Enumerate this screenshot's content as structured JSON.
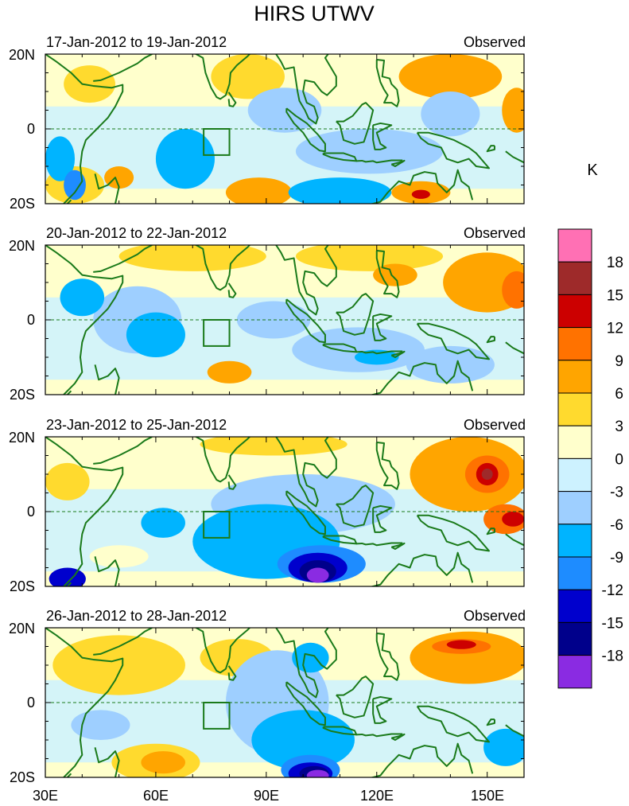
{
  "chart_data": {
    "type": "heatmap",
    "title": "HIRS UTWV",
    "units": "K",
    "x_ticks": [
      "30E",
      "60E",
      "90E",
      "120E",
      "150E"
    ],
    "y_ticks": [
      "20N",
      "0",
      "20S"
    ],
    "xlim": [
      30,
      160
    ],
    "ylim": [
      -20,
      20
    ],
    "colorbar": {
      "labels": [
        "18",
        "15",
        "12",
        "9",
        "6",
        "3",
        "0",
        "-3",
        "-6",
        "-9",
        "-12",
        "-15",
        "-18"
      ],
      "levels_desc": [
        18,
        15,
        12,
        9,
        6,
        3,
        0,
        -3,
        -6,
        -9,
        -12,
        -15,
        -18
      ],
      "colors_desc": [
        "#ff70b4",
        "#9e2a2a",
        "#cc0000",
        "#ff7200",
        "#ffa500",
        "#ffda2e",
        "#ffffcc",
        "#cdf2ff",
        "#9ecfff",
        "#00b4ff",
        "#1e8cff",
        "#0000cd",
        "#00008b",
        "#8a2be2"
      ]
    },
    "panels": [
      {
        "period": "17-Jan-2012 to 19-Jan-2012",
        "label": "Observed",
        "features": [
          {
            "lon": 42,
            "lat": 12,
            "rx": 7,
            "ry": 5,
            "value": 4.5
          },
          {
            "lon": 85,
            "lat": 14,
            "rx": 10,
            "ry": 6,
            "value": 4.5
          },
          {
            "lon": 140,
            "lat": 14,
            "rx": 14,
            "ry": 6,
            "value": 7
          },
          {
            "lon": 158,
            "lat": 5,
            "rx": 4,
            "ry": 6,
            "value": 7
          },
          {
            "lon": 38,
            "lat": -15,
            "rx": 8,
            "ry": 5,
            "value": 4.5
          },
          {
            "lon": 50,
            "lat": -13,
            "rx": 4,
            "ry": 3,
            "value": 7
          },
          {
            "lon": 88,
            "lat": -17,
            "rx": 9,
            "ry": 4,
            "value": 7
          },
          {
            "lon": 132,
            "lat": -17,
            "rx": 8,
            "ry": 3,
            "value": 7
          },
          {
            "lon": 132,
            "lat": -17.5,
            "rx": 2.5,
            "ry": 1.2,
            "value": 13.5
          },
          {
            "lon": 140,
            "lat": 4,
            "rx": 8,
            "ry": 6,
            "value": -4.5
          },
          {
            "lon": 95,
            "lat": 5,
            "rx": 10,
            "ry": 6,
            "value": -4.5
          },
          {
            "lon": 68,
            "lat": -8,
            "rx": 8,
            "ry": 8,
            "value": -7.5
          },
          {
            "lon": 118,
            "lat": -6,
            "rx": 20,
            "ry": 6,
            "value": -4.5
          },
          {
            "lon": 110,
            "lat": -17,
            "rx": 14,
            "ry": 4,
            "value": -7.5
          },
          {
            "lon": 34,
            "lat": -8,
            "rx": 4,
            "ry": 6,
            "value": -7.5
          },
          {
            "lon": 38,
            "lat": -15,
            "rx": 3,
            "ry": 4,
            "value": -10.5
          }
        ]
      },
      {
        "period": "20-Jan-2012 to 22-Jan-2012",
        "label": "Observed",
        "features": [
          {
            "lon": 70,
            "lat": 17,
            "rx": 20,
            "ry": 4,
            "value": 4.5
          },
          {
            "lon": 118,
            "lat": 17,
            "rx": 20,
            "ry": 4,
            "value": 4.5
          },
          {
            "lon": 150,
            "lat": 10,
            "rx": 12,
            "ry": 8,
            "value": 7
          },
          {
            "lon": 158,
            "lat": 8,
            "rx": 4,
            "ry": 5,
            "value": 10.5
          },
          {
            "lon": 80,
            "lat": -14,
            "rx": 6,
            "ry": 3,
            "value": 7
          },
          {
            "lon": 125,
            "lat": 12,
            "rx": 6,
            "ry": 3,
            "value": 7
          },
          {
            "lon": 55,
            "lat": 0,
            "rx": 12,
            "ry": 9,
            "value": -4.5
          },
          {
            "lon": 40,
            "lat": 6,
            "rx": 6,
            "ry": 5,
            "value": -7.5
          },
          {
            "lon": 60,
            "lat": -4,
            "rx": 8,
            "ry": 6,
            "value": -7.5
          },
          {
            "lon": 92,
            "lat": 0,
            "rx": 10,
            "ry": 5,
            "value": -4.5
          },
          {
            "lon": 115,
            "lat": -8,
            "rx": 18,
            "ry": 6,
            "value": -4.5
          },
          {
            "lon": 140,
            "lat": -12,
            "rx": 12,
            "ry": 5,
            "value": -4.5
          },
          {
            "lon": 120,
            "lat": -10,
            "rx": 6,
            "ry": 2,
            "value": -7.5
          }
        ]
      },
      {
        "period": "23-Jan-2012 to 25-Jan-2012",
        "label": "Observed",
        "features": [
          {
            "lon": 36,
            "lat": 8,
            "rx": 6,
            "ry": 5,
            "value": 4.5
          },
          {
            "lon": 92,
            "lat": 18,
            "rx": 20,
            "ry": 3,
            "value": 4.5
          },
          {
            "lon": 145,
            "lat": 10,
            "rx": 16,
            "ry": 10,
            "value": 7
          },
          {
            "lon": 150,
            "lat": 10,
            "rx": 6,
            "ry": 5,
            "value": 10.5
          },
          {
            "lon": 150,
            "lat": 10,
            "rx": 3,
            "ry": 3,
            "value": 13.5
          },
          {
            "lon": 150,
            "lat": 10,
            "rx": 1.5,
            "ry": 1.5,
            "value": 16.5
          },
          {
            "lon": 155,
            "lat": -2,
            "rx": 6,
            "ry": 4,
            "value": 10.5
          },
          {
            "lon": 157,
            "lat": -2,
            "rx": 3,
            "ry": 2,
            "value": 13.5
          },
          {
            "lon": 100,
            "lat": 2,
            "rx": 25,
            "ry": 8,
            "value": -4.5
          },
          {
            "lon": 90,
            "lat": -8,
            "rx": 20,
            "ry": 10,
            "value": -7.5
          },
          {
            "lon": 105,
            "lat": -14,
            "rx": 12,
            "ry": 5,
            "value": -10.5
          },
          {
            "lon": 104,
            "lat": -15,
            "rx": 8,
            "ry": 4,
            "value": -13.5
          },
          {
            "lon": 104,
            "lat": -16,
            "rx": 5,
            "ry": 3,
            "value": -16.5
          },
          {
            "lon": 104,
            "lat": -17,
            "rx": 3,
            "ry": 2,
            "value": -19.5
          },
          {
            "lon": 62,
            "lat": -3,
            "rx": 6,
            "ry": 4,
            "value": -7.5
          },
          {
            "lon": 36,
            "lat": -18,
            "rx": 5,
            "ry": 3,
            "value": -13.5
          },
          {
            "lon": 50,
            "lat": -12,
            "rx": 8,
            "ry": 3,
            "value": 1.5
          }
        ]
      },
      {
        "period": "26-Jan-2012 to 28-Jan-2012",
        "label": "Observed",
        "features": [
          {
            "lon": 50,
            "lat": 10,
            "rx": 18,
            "ry": 8,
            "value": 4.5
          },
          {
            "lon": 82,
            "lat": 12,
            "rx": 10,
            "ry": 5,
            "value": 4.5
          },
          {
            "lon": 145,
            "lat": 12,
            "rx": 16,
            "ry": 7,
            "value": 7
          },
          {
            "lon": 143,
            "lat": 15,
            "rx": 8,
            "ry": 2,
            "value": 10.5
          },
          {
            "lon": 143,
            "lat": 15.5,
            "rx": 4,
            "ry": 1.2,
            "value": 13.5
          },
          {
            "lon": 60,
            "lat": -16,
            "rx": 12,
            "ry": 5,
            "value": 4.5
          },
          {
            "lon": 62,
            "lat": -16,
            "rx": 6,
            "ry": 3,
            "value": 7
          },
          {
            "lon": 93,
            "lat": 0,
            "rx": 14,
            "ry": 14,
            "value": -4.5
          },
          {
            "lon": 100,
            "lat": -10,
            "rx": 14,
            "ry": 8,
            "value": -7.5
          },
          {
            "lon": 102,
            "lat": -18,
            "rx": 8,
            "ry": 4,
            "value": -10.5
          },
          {
            "lon": 102,
            "lat": -19,
            "rx": 6,
            "ry": 3,
            "value": -13.5
          },
          {
            "lon": 103,
            "lat": -19,
            "rx": 4,
            "ry": 2,
            "value": -16.5
          },
          {
            "lon": 104,
            "lat": -19.5,
            "rx": 3,
            "ry": 1.5,
            "value": -19.5
          },
          {
            "lon": 102,
            "lat": 12,
            "rx": 5,
            "ry": 4,
            "value": -7.5
          },
          {
            "lon": 155,
            "lat": -12,
            "rx": 6,
            "ry": 5,
            "value": -7.5
          },
          {
            "lon": 45,
            "lat": -6,
            "rx": 8,
            "ry": 4,
            "value": -4.5
          }
        ]
      }
    ]
  }
}
